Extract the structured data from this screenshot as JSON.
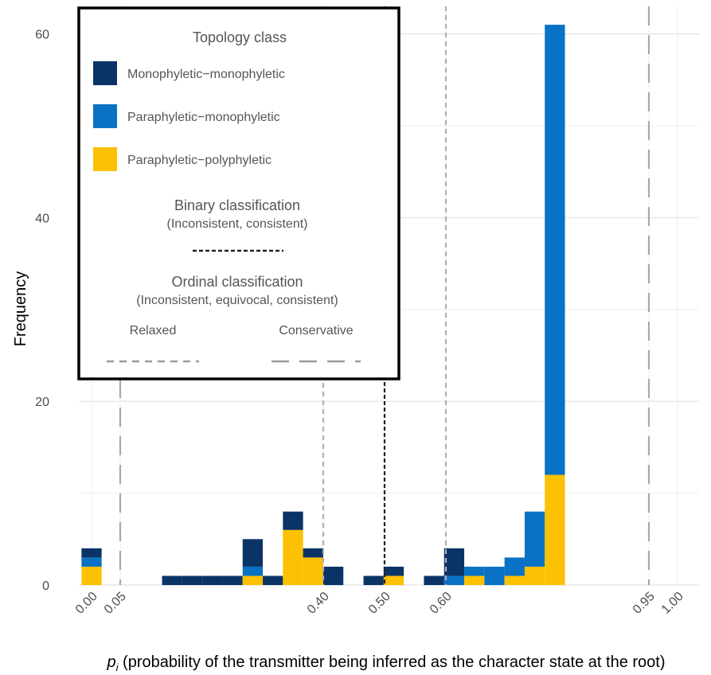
{
  "chart_data": {
    "type": "bar",
    "stacked": true,
    "xlabel_var": "p",
    "xlabel_sub": "i",
    "xlabel_rest": " (probability of the transmitter being inferred as the character state at the root)",
    "ylabel": "Frequency",
    "xlim": [
      -0.025,
      1.025
    ],
    "ylim": [
      0,
      63
    ],
    "bin_width": 0.05,
    "yticks": [
      "0",
      "20",
      "40",
      "60"
    ],
    "ytick_values": [
      0,
      20,
      40,
      60
    ],
    "xticks": [
      "0.00",
      "0.05",
      "0.40",
      "0.50",
      "0.60",
      "0.95",
      "1.00"
    ],
    "xtick_values": [
      0,
      0.05,
      0.4,
      0.5,
      0.6,
      0.95,
      1.0
    ],
    "grid": true,
    "colors": {
      "Monophyletic-monophyletic": "#0b3466",
      "Paraphyletic-monophyletic": "#0a72c4",
      "Paraphyletic-polyphyletic": "#fcc102"
    },
    "bins": [
      {
        "x": 0.0,
        "pp": 2,
        "pm": 1,
        "mm": 1
      },
      {
        "x": 0.2,
        "pp": 0,
        "pm": 0,
        "mm": 1
      },
      {
        "x": 0.25,
        "pp": 0,
        "pm": 0,
        "mm": 1
      },
      {
        "x": 0.3,
        "pp": 0,
        "pm": 0,
        "mm": 1
      },
      {
        "x": 0.35,
        "pp": 0,
        "pm": 0,
        "mm": 1
      },
      {
        "x": 0.4,
        "pp": 1,
        "pm": 1,
        "mm": 3
      },
      {
        "x": 0.45,
        "pp": 0,
        "pm": 0,
        "mm": 1
      },
      {
        "x": 0.5,
        "pp": 6,
        "pm": 0,
        "mm": 2
      },
      {
        "x": 0.55,
        "pp": 3,
        "pm": 0,
        "mm": 1
      },
      {
        "x": 0.6,
        "pp": 0,
        "pm": 0,
        "mm": 2
      },
      {
        "x": 0.7,
        "pp": 0,
        "pm": 0,
        "mm": 1
      },
      {
        "x": 0.75,
        "pp": 1,
        "pm": 0,
        "mm": 1
      },
      {
        "x": 0.85,
        "pp": 0,
        "pm": 0,
        "mm": 1
      },
      {
        "x": 0.9,
        "pp": 0,
        "pm": 1,
        "mm": 3
      },
      {
        "x": 0.95,
        "pp": 1,
        "pm": 1,
        "mm": 0
      },
      {
        "x": 1.0,
        "pp": 0,
        "pm": 2,
        "mm": 0
      },
      {
        "x": 1.05,
        "pp": 1,
        "pm": 2,
        "mm": 0
      },
      {
        "x": 1.1,
        "pp": 2,
        "pm": 6,
        "mm": 0
      },
      {
        "x": 1.15,
        "pp": 12,
        "pm": 49,
        "mm": 0
      }
    ],
    "bin_positions_note": "",
    "vlines": [
      {
        "x": 0.5,
        "style": "binary"
      },
      {
        "x": 0.4,
        "style": "relaxed"
      },
      {
        "x": 0.6,
        "style": "relaxed"
      },
      {
        "x": 0.05,
        "style": "conservative"
      },
      {
        "x": 0.95,
        "style": "conservative"
      }
    ],
    "legend": {
      "title": "Topology class",
      "items": [
        {
          "key": "mm",
          "label": "Monophyletic−monophyletic",
          "color": "#0b3466"
        },
        {
          "key": "pm",
          "label": "Paraphyletic−monophyletic",
          "color": "#0a72c4"
        },
        {
          "key": "pp",
          "label": "Paraphyletic−polyphyletic",
          "color": "#fcc102"
        }
      ],
      "binary_title": "Binary classification",
      "binary_sub": "(Inconsistent, consistent)",
      "ordinal_title": "Ordinal classification",
      "ordinal_sub": "(Inconsistent, equivocal, consistent)",
      "relaxed_label": "Relaxed",
      "conservative_label": "Conservative",
      "placement": "top-left"
    }
  }
}
